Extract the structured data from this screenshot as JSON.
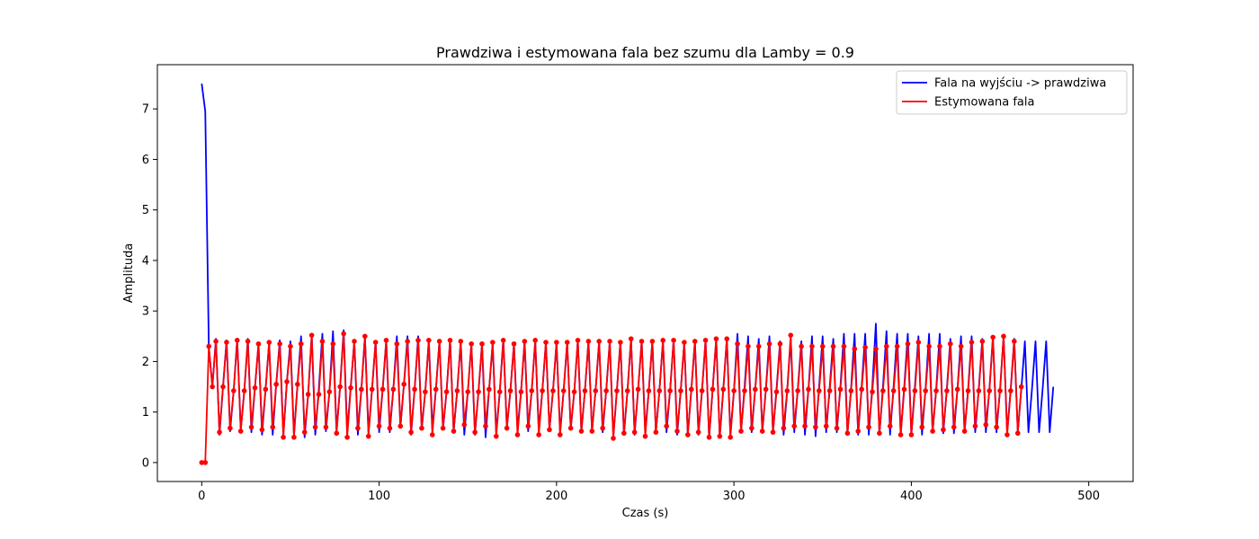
{
  "chart_data": {
    "type": "line",
    "title": "Prawdziwa i estymowana fala bez szumu dla Lamby = 0.9",
    "xlabel": "Czas (s)",
    "ylabel": "Amplituda",
    "xlim": [
      -25,
      525
    ],
    "ylim": [
      -0.375,
      7.875
    ],
    "x_ticks": [
      0,
      100,
      200,
      300,
      400,
      500
    ],
    "y_ticks": [
      0,
      1,
      2,
      3,
      4,
      5,
      6,
      7
    ],
    "grid": false,
    "legend": "top-right",
    "x": {
      "start": 0,
      "end": 500,
      "step": 2
    },
    "series": [
      {
        "name": "Fala na wyjściu -> prawdziwa",
        "color": "#0000ff",
        "markers": false,
        "values": [
          7.5,
          6.95,
          2.3,
          1.5,
          2.45,
          0.55,
          1.5,
          2.42,
          0.62,
          1.42,
          2.45,
          0.65,
          1.42,
          2.45,
          0.6,
          1.48,
          2.35,
          0.55,
          1.45,
          2.38,
          0.55,
          1.55,
          2.42,
          0.55,
          1.6,
          2.4,
          0.55,
          1.55,
          2.5,
          0.5,
          1.35,
          2.52,
          0.55,
          1.45,
          2.55,
          0.62,
          1.4,
          2.6,
          0.62,
          1.5,
          2.62,
          0.6,
          1.5,
          2.4,
          0.55,
          1.45,
          2.5,
          0.6,
          1.45,
          2.4,
          0.6,
          1.45,
          2.42,
          0.6,
          1.45,
          2.5,
          0.7,
          1.55,
          2.5,
          0.55,
          1.45,
          2.5,
          0.65,
          1.4,
          2.42,
          0.68,
          1.45,
          2.4,
          0.65,
          1.4,
          2.42,
          0.62,
          1.42,
          2.4,
          0.55,
          1.4,
          2.35,
          0.55,
          1.4,
          2.35,
          0.5,
          1.45,
          2.35,
          0.6,
          1.4,
          2.45,
          0.68,
          1.42,
          2.35,
          0.65,
          1.4,
          2.4,
          0.62,
          1.42,
          2.4,
          0.65,
          1.42,
          2.38,
          0.65,
          1.42,
          2.38,
          0.6,
          1.42,
          2.38,
          0.65,
          1.4,
          2.42,
          0.6,
          1.42,
          2.4,
          0.62,
          1.42,
          2.4,
          0.6,
          1.42,
          2.4,
          0.52,
          1.42,
          2.4,
          0.55,
          1.42,
          2.45,
          0.55,
          1.45,
          2.4,
          0.62,
          1.42,
          2.4,
          0.6,
          1.42,
          2.42,
          0.6,
          1.42,
          2.42,
          0.55,
          1.42,
          2.38,
          0.55,
          1.45,
          2.4,
          0.55,
          1.42,
          2.42,
          0.48,
          1.45,
          2.45,
          0.5,
          1.45,
          2.45,
          0.55,
          1.42,
          2.55,
          0.6,
          1.5,
          2.5,
          0.6,
          1.45,
          2.45,
          0.6,
          1.45,
          2.5,
          0.6,
          1.45,
          2.4,
          0.55,
          1.4,
          2.45,
          0.6,
          1.45,
          2.4,
          0.55,
          1.45,
          2.5,
          0.52,
          1.5,
          2.5,
          0.6,
          1.5,
          2.45,
          0.6,
          1.5,
          2.55,
          0.58,
          1.45,
          2.55,
          0.55,
          1.5,
          2.55,
          0.55,
          1.5,
          2.75,
          0.55,
          1.5,
          2.6,
          0.55,
          1.5,
          2.55,
          0.55,
          1.5,
          2.55,
          0.55,
          1.5,
          2.5,
          0.55,
          1.45,
          2.55,
          0.6,
          1.45,
          2.55,
          0.58,
          1.45,
          2.45,
          0.58,
          1.45,
          2.5,
          0.6,
          1.45,
          2.5,
          0.6,
          1.45,
          2.45,
          0.6,
          1.45,
          2.5,
          0.6,
          1.45,
          2.5,
          0.6,
          1.45,
          2.45,
          0.6,
          1.45,
          2.4,
          0.6,
          1.45,
          2.4,
          0.6,
          1.45,
          2.4,
          0.6,
          1.5
        ]
      },
      {
        "name": "Estymowana fala",
        "color": "#ff0000",
        "markers": true,
        "values": [
          0,
          0,
          2.3,
          1.5,
          2.4,
          0.6,
          1.5,
          2.38,
          0.68,
          1.42,
          2.42,
          0.62,
          1.42,
          2.4,
          0.7,
          1.48,
          2.35,
          0.65,
          1.45,
          2.38,
          0.7,
          1.55,
          2.35,
          0.5,
          1.6,
          2.3,
          0.5,
          1.55,
          2.35,
          0.6,
          1.35,
          2.52,
          0.7,
          1.35,
          2.4,
          0.7,
          1.4,
          2.35,
          0.58,
          1.5,
          2.55,
          0.5,
          1.48,
          2.4,
          0.68,
          1.45,
          2.5,
          0.52,
          1.45,
          2.38,
          0.72,
          1.45,
          2.42,
          0.68,
          1.45,
          2.35,
          0.72,
          1.55,
          2.4,
          0.6,
          1.45,
          2.42,
          0.68,
          1.4,
          2.42,
          0.55,
          1.45,
          2.4,
          0.68,
          1.4,
          2.42,
          0.62,
          1.42,
          2.4,
          0.75,
          1.4,
          2.35,
          0.6,
          1.4,
          2.35,
          0.72,
          1.45,
          2.38,
          0.52,
          1.4,
          2.42,
          0.68,
          1.42,
          2.35,
          0.55,
          1.4,
          2.4,
          0.72,
          1.42,
          2.42,
          0.55,
          1.42,
          2.38,
          0.65,
          1.42,
          2.38,
          0.55,
          1.42,
          2.38,
          0.68,
          1.4,
          2.42,
          0.62,
          1.42,
          2.4,
          0.62,
          1.42,
          2.4,
          0.68,
          1.42,
          2.4,
          0.48,
          1.42,
          2.38,
          0.58,
          1.42,
          2.45,
          0.6,
          1.45,
          2.4,
          0.52,
          1.42,
          2.4,
          0.6,
          1.42,
          2.42,
          0.72,
          1.42,
          2.42,
          0.62,
          1.42,
          2.38,
          0.55,
          1.45,
          2.4,
          0.6,
          1.42,
          2.42,
          0.5,
          1.45,
          2.45,
          0.52,
          1.45,
          2.45,
          0.5,
          1.42,
          2.35,
          0.62,
          1.42,
          2.3,
          0.68,
          1.45,
          2.3,
          0.62,
          1.45,
          2.35,
          0.6,
          1.4,
          2.35,
          0.68,
          1.42,
          2.52,
          0.72,
          1.42,
          2.3,
          0.72,
          1.45,
          2.3,
          0.7,
          1.42,
          2.3,
          0.72,
          1.42,
          2.3,
          0.68,
          1.45,
          2.3,
          0.58,
          1.42,
          2.25,
          0.62,
          1.45,
          2.28,
          0.7,
          1.4,
          2.25,
          0.58,
          1.42,
          2.3,
          0.72,
          1.42,
          2.3,
          0.55,
          1.45,
          2.35,
          0.55,
          1.42,
          2.38,
          0.7,
          1.42,
          2.3,
          0.62,
          1.42,
          2.3,
          0.65,
          1.42,
          2.35,
          0.7,
          1.45,
          2.3,
          0.62,
          1.42,
          2.38,
          0.72,
          1.42,
          2.4,
          0.75,
          1.42,
          2.48,
          0.7,
          1.42,
          2.5,
          0.55,
          1.42,
          2.4,
          0.58,
          1.5
        ]
      }
    ]
  }
}
